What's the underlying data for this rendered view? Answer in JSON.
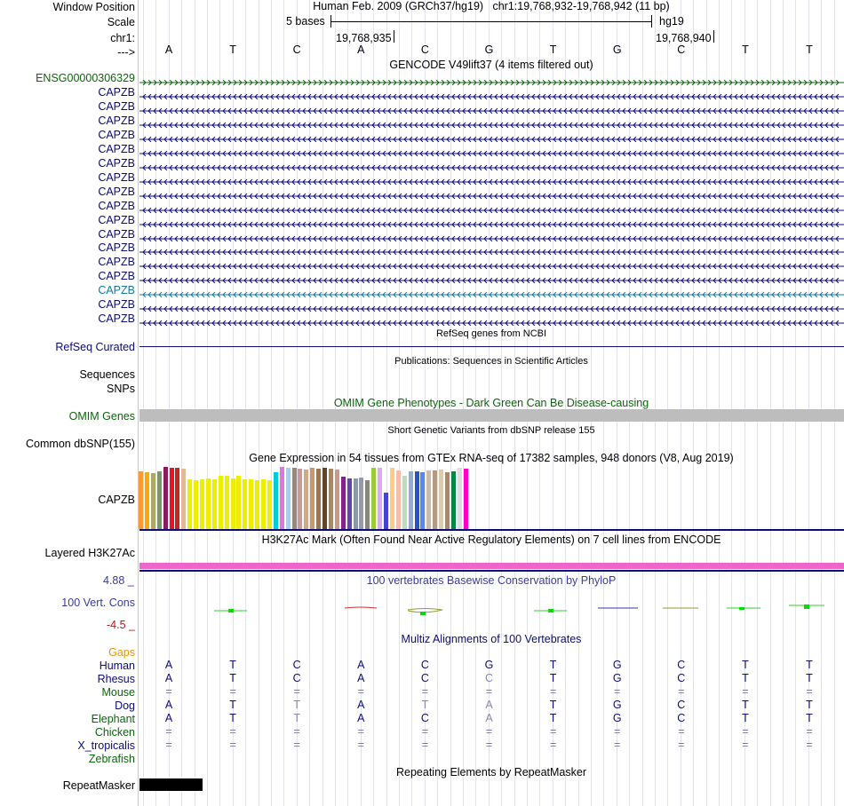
{
  "colors": {
    "navy": "#0c0c78",
    "green": "#0c640c",
    "teal": "#127a9e",
    "orange": "#e6960a",
    "darkred": "#b41414",
    "gray": "#bdbdbd",
    "magenta": "#ee66cc"
  },
  "header": {
    "window_position_label": "Window Position",
    "scale_label": "Scale",
    "chr_label": "chr1:",
    "strand_label": "--->",
    "assembly_title": "Human Feb. 2009 (GRCh37/hg19)   chr1:19,768,932-19,768,942 (11 bp)",
    "scale_text": "5 bases",
    "scale_db": "hg19",
    "coord_left": "19,768,935",
    "coord_right": "19,768,940",
    "bases": [
      "A",
      "T",
      "C",
      "A",
      "C",
      "G",
      "T",
      "G",
      "C",
      "T",
      "T"
    ]
  },
  "gencode": {
    "title": "GENCODE V49lift37 (4 items filtered out)",
    "first_item": "ENSG00000306329",
    "items": [
      "CAPZB",
      "CAPZB",
      "CAPZB",
      "CAPZB",
      "CAPZB",
      "CAPZB",
      "CAPZB",
      "CAPZB",
      "CAPZB",
      "CAPZB",
      "CAPZB",
      "CAPZB",
      "CAPZB",
      "CAPZB",
      "CAPZB",
      "CAPZB",
      "CAPZB"
    ]
  },
  "refseq": {
    "title": "RefSeq genes from NCBI",
    "label": "RefSeq Curated"
  },
  "publications": {
    "title": "Publications: Sequences in Scientific Articles",
    "label1": "Sequences",
    "label2": "SNPs"
  },
  "omim": {
    "title": "OMIM Gene Phenotypes - Dark Green Can Be Disease-causing",
    "label": "OMIM Genes"
  },
  "dbsnp": {
    "title": "Short Genetic Variants from dbSNP release 155",
    "label": "Common dbSNP(155)"
  },
  "gtex": {
    "title": "Gene Expression in 54 tissues from GTEx RNA-seq of 17382 samples, 948 donors (V8, Aug 2019)",
    "label": "CAPZB",
    "bar_colors": [
      "#ff9933",
      "#ffaa00",
      "#aaaa66",
      "#779966",
      "#8b1a5a",
      "#ee1122",
      "#cc2222",
      "#ddbb99",
      "#eeee00",
      "#eeee00",
      "#eeee00",
      "#eeee00",
      "#eeee00",
      "#eeee00",
      "#eeee00",
      "#eeee00",
      "#eeee00",
      "#eeee00",
      "#eeee00",
      "#eeee00",
      "#eeee00",
      "#eeee00",
      "#00ccdd",
      "#dd77dd",
      "#aaccee",
      "#998877",
      "#cc9999",
      "#ccaa88",
      "#cc9966",
      "#997755",
      "#664422",
      "#aa8866",
      "#cc9988",
      "#882288",
      "#6644aa",
      "#8899aa",
      "#9999aa",
      "#888877",
      "#99cc33",
      "#ddaaee",
      "#4444cc",
      "#ffcc88",
      "#ffbbaa",
      "#bbddbb",
      "#99aacc",
      "#2255cc",
      "#5588ee",
      "#ccbbaa",
      "#bb9977",
      "#ddccaa",
      "#aa8866",
      "#008844",
      "#dddddd",
      "#ff00cc"
    ],
    "bar_values": [
      0.93,
      0.92,
      0.9,
      0.93,
      1.0,
      0.98,
      0.99,
      0.97,
      0.8,
      0.78,
      0.8,
      0.82,
      0.8,
      0.85,
      0.85,
      0.82,
      0.85,
      0.8,
      0.8,
      0.78,
      0.8,
      0.78,
      0.91,
      1.0,
      0.99,
      0.98,
      0.97,
      0.96,
      0.98,
      0.97,
      0.99,
      0.97,
      0.96,
      0.84,
      0.82,
      0.81,
      0.83,
      0.78,
      0.98,
      0.98,
      0.58,
      0.98,
      0.94,
      0.85,
      0.93,
      0.93,
      0.92,
      0.94,
      0.94,
      0.95,
      0.92,
      0.93,
      0.98,
      0.97
    ]
  },
  "h3k27ac": {
    "title": "H3K27Ac Mark (Often Found Near Active Regulatory Elements) on 7 cell lines from ENCODE",
    "label": "Layered H3K27Ac"
  },
  "phylop": {
    "title": "100 vertebrates Basewise Conservation by PhyloP",
    "label": "100 Vert. Cons",
    "ymax": "4.88 _",
    "ymin": "-4.5 _"
  },
  "multiz": {
    "title": "Multiz Alignments of 100 Vertebrates",
    "gaps_label": "Gaps",
    "species": [
      {
        "name": "Human",
        "seq": [
          "A",
          "T",
          "C",
          "A",
          "C",
          "G",
          "T",
          "G",
          "C",
          "T",
          "T"
        ]
      },
      {
        "name": "Rhesus",
        "seq": [
          "A",
          "T",
          "C",
          "A",
          "C",
          "C",
          "T",
          "G",
          "C",
          "T",
          "T"
        ]
      },
      {
        "name": "Mouse",
        "seq": [
          "=",
          "=",
          "=",
          "=",
          "=",
          "=",
          "=",
          "=",
          "=",
          "=",
          "="
        ]
      },
      {
        "name": "Dog",
        "seq": [
          "A",
          "T",
          "T",
          "A",
          "T",
          "A",
          "T",
          "G",
          "C",
          "T",
          "T"
        ]
      },
      {
        "name": "Elephant",
        "seq": [
          "A",
          "T",
          "T",
          "A",
          "C",
          "A",
          "T",
          "G",
          "C",
          "T",
          "T"
        ]
      },
      {
        "name": "Chicken",
        "seq": [
          "=",
          "=",
          "=",
          "=",
          "=",
          "=",
          "=",
          "=",
          "=",
          "=",
          "="
        ]
      },
      {
        "name": "X_tropicalis",
        "seq": [
          "=",
          "=",
          "=",
          "=",
          "=",
          "=",
          "=",
          "=",
          "=",
          "=",
          "="
        ]
      },
      {
        "name": "Zebrafish",
        "seq": [
          "",
          "",
          "",
          "",
          "",
          "",
          "",
          "",
          "",
          "",
          ""
        ]
      }
    ]
  },
  "repeatmasker": {
    "title": "Repeating Elements by RepeatMasker",
    "label": "RepeatMasker"
  }
}
